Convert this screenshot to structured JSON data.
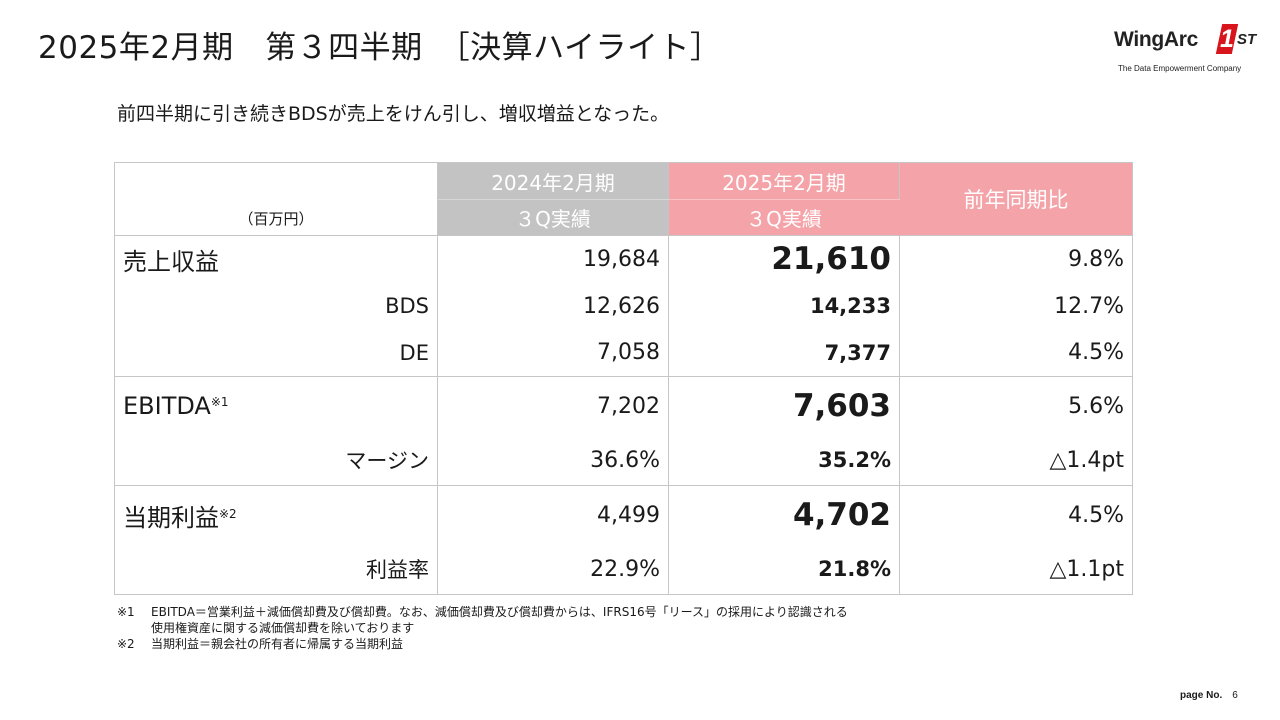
{
  "title": "2025年2月期　第３四半期　［決算ハイライト］",
  "logo": {
    "wordmark": "WingArc",
    "numeral": "1",
    "suffix": "ST",
    "tagline": "The Data Empowerment Company"
  },
  "subtitle": "前四半期に引き続きBDSが売上をけん引し、増収増益となった。",
  "table": {
    "unit": "（百万円）",
    "col_prev": {
      "line1": "2024年2月期",
      "line2": "３Q実績"
    },
    "col_curr": {
      "line1": "2025年2月期",
      "line2": "３Q実績"
    },
    "col_yoy": "前年同期比",
    "revenue": {
      "label": "売上収益",
      "prev": "19,684",
      "curr": "21,610",
      "yoy": "9.8%",
      "bds": {
        "label": "BDS",
        "prev": "12,626",
        "curr": "14,233",
        "yoy": "12.7%"
      },
      "de": {
        "label": "DE",
        "prev": "7,058",
        "curr": "7,377",
        "yoy": "4.5%"
      }
    },
    "ebitda": {
      "label": "EBITDA",
      "note": "※1",
      "prev": "7,202",
      "curr": "7,603",
      "yoy": "5.6%",
      "margin": {
        "label": "マージン",
        "prev": "36.6%",
        "curr": "35.2%",
        "yoy": "△1.4pt"
      }
    },
    "net_income": {
      "label": "当期利益",
      "note": "※2",
      "prev": "4,499",
      "curr": "4,702",
      "yoy": "4.5%",
      "rate": {
        "label": "利益率",
        "prev": "22.9%",
        "curr": "21.8%",
        "yoy": "△1.1pt"
      }
    }
  },
  "notes": {
    "n1_mark": "※1",
    "n1_line1": "EBITDA＝営業利益＋減価償却費及び償却費。なお、減価償却費及び償却費からは、IFRS16号「リース」の採用により認識される",
    "n1_line2": "使用権資産に関する減価償却費を除いております",
    "n2_mark": "※2",
    "n2_line1": "当期利益＝親会社の所有者に帰属する当期利益"
  },
  "page": {
    "label": "page No.",
    "number": "6"
  },
  "colors": {
    "header_prev": "#c3c3c3",
    "header_curr": "#f4a3a8",
    "logo_red": "#d8141c"
  }
}
